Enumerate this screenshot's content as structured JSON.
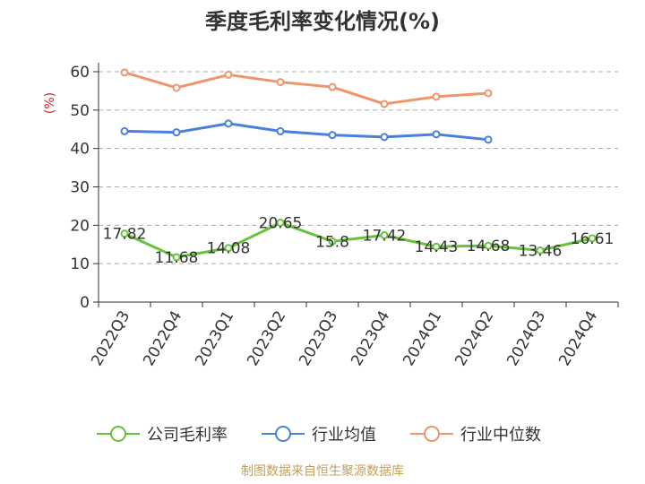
{
  "chart_data": {
    "type": "line",
    "title": "季度毛利率变化情况(%)",
    "ylabel": "(%)",
    "xlabel": "",
    "ylim": [
      0,
      60
    ],
    "yticks": [
      0,
      10,
      20,
      30,
      40,
      50,
      60
    ],
    "grid": true,
    "legend_position": "bottom",
    "categories": [
      "2022Q3",
      "2022Q4",
      "2023Q1",
      "2023Q2",
      "2023Q3",
      "2023Q4",
      "2024Q1",
      "2024Q2",
      "2024Q3",
      "2024Q4"
    ],
    "series": [
      {
        "name": "公司毛利率",
        "color": "#66c23a",
        "values": [
          17.82,
          11.68,
          14.08,
          20.65,
          15.8,
          17.42,
          14.43,
          14.68,
          13.46,
          16.61
        ],
        "labels": [
          "17.82",
          "11.68",
          "14.08",
          "20.65",
          "15.8",
          "17.42",
          "14.43",
          "14.68",
          "13.46",
          "16.61"
        ]
      },
      {
        "name": "行业均值",
        "color": "#4a7fdc",
        "values": [
          44.5,
          44.2,
          46.5,
          44.5,
          43.5,
          43.0,
          43.7,
          42.3,
          null,
          null
        ]
      },
      {
        "name": "行业中位数",
        "color": "#f0956a",
        "values": [
          59.8,
          55.8,
          59.2,
          57.3,
          56.0,
          51.6,
          53.5,
          54.4,
          null,
          null
        ]
      }
    ]
  },
  "source_text": "制图数据来自恒生聚源数据库"
}
